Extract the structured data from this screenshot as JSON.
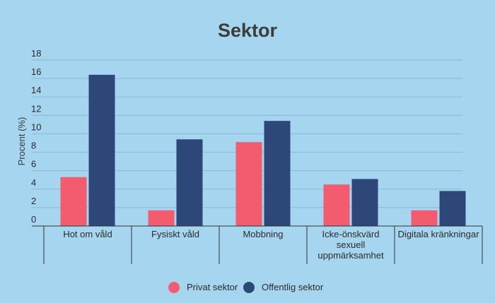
{
  "chart_data": {
    "type": "bar",
    "title": "Sektor",
    "xlabel": "",
    "ylabel": "Procent (%)",
    "ylim": [
      0,
      18
    ],
    "yticks": [
      0,
      2,
      4,
      6,
      8,
      10,
      12,
      14,
      16,
      18
    ],
    "grid": true,
    "legend_position": "bottom",
    "categories": [
      [
        "Hot om våld"
      ],
      [
        "Fysiskt våld"
      ],
      [
        "Mobbning"
      ],
      [
        "Icke-önskvärd",
        "sexuell",
        "uppmärksamhet"
      ],
      [
        "Digitala kränkningar"
      ]
    ],
    "series": [
      {
        "name": "Privat sektor",
        "color": "#f25c6e",
        "values": [
          5.3,
          1.7,
          9.1,
          4.5,
          1.7
        ]
      },
      {
        "name": "Offentlig sektor",
        "color": "#2d4778",
        "values": [
          16.4,
          9.4,
          11.4,
          5.1,
          3.8
        ]
      }
    ]
  },
  "colors": {
    "background": "#a6d5ef",
    "grid": "#8bb8d3",
    "axis": "#333333",
    "title": "#3c3c3c"
  }
}
